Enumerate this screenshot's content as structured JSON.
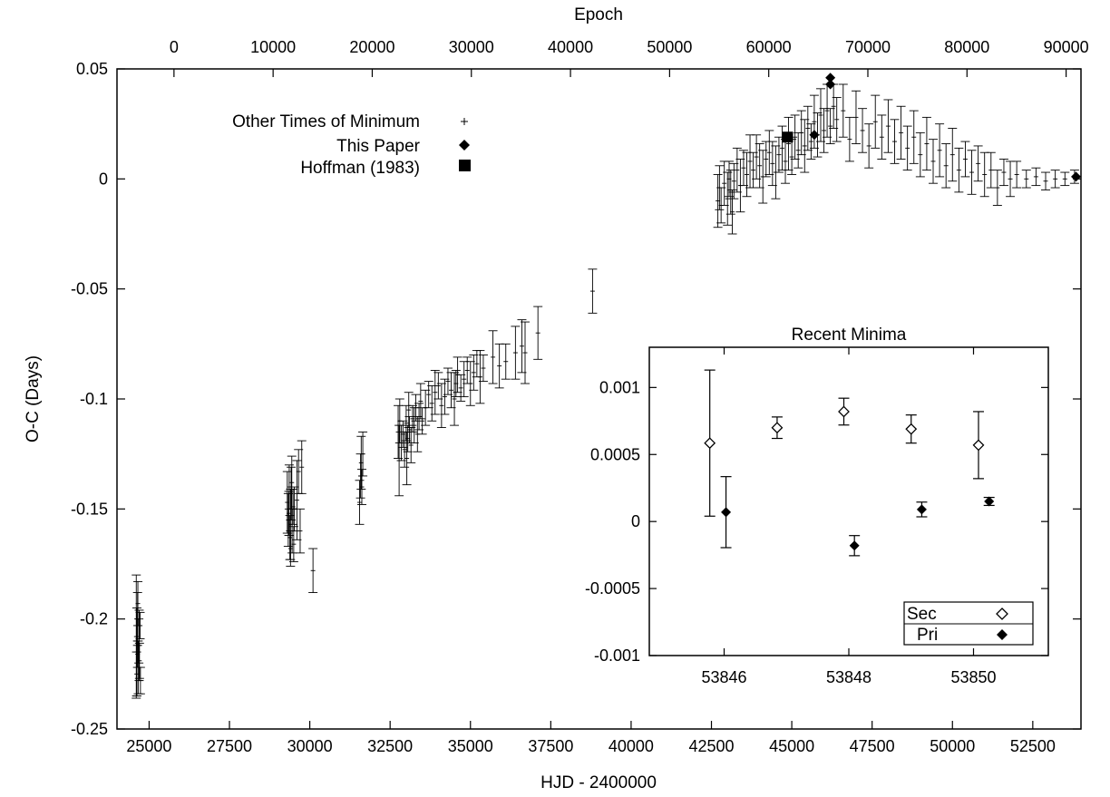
{
  "chart_data": [
    {
      "type": "scatter",
      "title": "",
      "xlabel": "HJD - 2400000",
      "ylabel": "O-C (Days)",
      "x2label": "Epoch",
      "xlim": [
        24000,
        54000
      ],
      "ylim": [
        -0.25,
        0.05
      ],
      "x2lim": [
        -5750,
        91500
      ],
      "xticks": [
        25000,
        27500,
        30000,
        32500,
        35000,
        37500,
        40000,
        42500,
        45000,
        47500,
        50000,
        52500
      ],
      "x2ticks": [
        0,
        10000,
        20000,
        30000,
        40000,
        50000,
        60000,
        70000,
        80000,
        90000
      ],
      "yticks": [
        -0.25,
        -0.2,
        -0.15,
        -0.1,
        -0.05,
        0,
        0.05
      ],
      "grid": false,
      "legend": "top-left",
      "legend_entries": [
        "Other Times of Minimum",
        "This Paper",
        "Hoffman (1983)"
      ],
      "series": [
        {
          "name": "Other Times of Minimum",
          "marker": "plus",
          "points": [
            [
              24600,
              -0.208,
              0.028
            ],
            [
              24620,
              -0.215,
              0.02
            ],
            [
              24640,
              -0.2,
              0.012
            ],
            [
              24660,
              -0.222,
              0.012
            ],
            [
              24680,
              -0.21,
              0.01
            ],
            [
              24700,
              -0.219,
              0.008
            ],
            [
              24610,
              -0.225,
              0.01
            ],
            [
              24650,
              -0.193,
              0.01
            ],
            [
              24690,
              -0.212,
              0.016
            ],
            [
              24720,
              -0.203,
              0.006
            ],
            [
              24730,
              -0.228,
              0.006
            ],
            [
              24640,
              -0.216,
              0.006
            ],
            [
              29300,
              -0.147,
              0.014
            ],
            [
              29350,
              -0.152,
              0.01
            ],
            [
              29380,
              -0.163,
              0.01
            ],
            [
              29400,
              -0.157,
              0.016
            ],
            [
              29420,
              -0.143,
              0.012
            ],
            [
              29450,
              -0.16,
              0.01
            ],
            [
              29480,
              -0.149,
              0.008
            ],
            [
              29500,
              -0.166,
              0.008
            ],
            [
              29520,
              -0.15,
              0.01
            ],
            [
              29330,
              -0.155,
              0.012
            ],
            [
              29360,
              -0.14,
              0.01
            ],
            [
              29400,
              -0.168,
              0.008
            ],
            [
              29440,
              -0.138,
              0.012
            ],
            [
              29600,
              -0.146,
              0.018
            ],
            [
              29650,
              -0.133,
              0.01
            ],
            [
              29700,
              -0.16,
              0.01
            ],
            [
              29750,
              -0.131,
              0.012
            ],
            [
              30100,
              -0.178,
              0.01
            ],
            [
              31550,
              -0.147,
              0.01
            ],
            [
              31580,
              -0.135,
              0.01
            ],
            [
              31600,
              -0.129,
              0.012
            ],
            [
              31620,
              -0.14,
              0.008
            ],
            [
              31650,
              -0.125,
              0.01
            ],
            [
              32750,
              -0.115,
              0.012
            ],
            [
              32780,
              -0.128,
              0.016
            ],
            [
              32800,
              -0.11,
              0.01
            ],
            [
              32850,
              -0.12,
              0.008
            ],
            [
              32900,
              -0.116,
              0.006
            ],
            [
              32950,
              -0.123,
              0.008
            ],
            [
              33000,
              -0.111,
              0.008
            ],
            [
              33020,
              -0.127,
              0.012
            ],
            [
              33050,
              -0.118,
              0.006
            ],
            [
              33080,
              -0.105,
              0.008
            ],
            [
              33100,
              -0.114,
              0.006
            ],
            [
              33150,
              -0.121,
              0.008
            ],
            [
              33200,
              -0.109,
              0.006
            ],
            [
              33250,
              -0.112,
              0.008
            ],
            [
              33300,
              -0.104,
              0.006
            ],
            [
              33350,
              -0.116,
              0.008
            ],
            [
              33400,
              -0.108,
              0.006
            ],
            [
              33450,
              -0.101,
              0.008
            ],
            [
              33500,
              -0.11,
              0.006
            ],
            [
              33600,
              -0.104,
              0.008
            ],
            [
              33700,
              -0.098,
              0.006
            ],
            [
              33800,
              -0.102,
              0.008
            ],
            [
              33900,
              -0.097,
              0.01
            ],
            [
              34000,
              -0.094,
              0.006
            ],
            [
              34100,
              -0.103,
              0.01
            ],
            [
              34200,
              -0.099,
              0.008
            ],
            [
              34300,
              -0.092,
              0.006
            ],
            [
              34400,
              -0.096,
              0.008
            ],
            [
              34500,
              -0.1,
              0.012
            ],
            [
              34550,
              -0.093,
              0.006
            ],
            [
              34600,
              -0.089,
              0.008
            ],
            [
              34700,
              -0.095,
              0.006
            ],
            [
              34800,
              -0.091,
              0.008
            ],
            [
              34900,
              -0.087,
              0.006
            ],
            [
              35000,
              -0.093,
              0.01
            ],
            [
              35100,
              -0.088,
              0.008
            ],
            [
              35200,
              -0.084,
              0.006
            ],
            [
              35300,
              -0.09,
              0.012
            ],
            [
              35400,
              -0.086,
              0.006
            ],
            [
              35700,
              -0.081,
              0.012
            ],
            [
              35900,
              -0.085,
              0.01
            ],
            [
              36100,
              -0.083,
              0.008
            ],
            [
              36400,
              -0.079,
              0.012
            ],
            [
              36600,
              -0.076,
              0.012
            ],
            [
              36700,
              -0.079,
              0.014
            ],
            [
              37100,
              -0.07,
              0.012
            ],
            [
              38800,
              -0.051,
              0.01
            ],
            [
              42700,
              -0.01,
              0.012
            ],
            [
              42750,
              -0.004,
              0.01
            ],
            [
              42800,
              -0.012,
              0.008
            ],
            [
              42900,
              -0.002,
              0.01
            ],
            [
              43000,
              -0.009,
              0.012
            ],
            [
              43050,
              0.0,
              0.008
            ],
            [
              43100,
              -0.006,
              0.01
            ],
            [
              43150,
              -0.015,
              0.01
            ],
            [
              43200,
              -0.001,
              0.008
            ],
            [
              43300,
              0.004,
              0.01
            ],
            [
              43400,
              -0.003,
              0.012
            ],
            [
              43500,
              0.005,
              0.008
            ],
            [
              43600,
              0.002,
              0.01
            ],
            [
              43700,
              0.008,
              0.012
            ],
            [
              43800,
              0.004,
              0.008
            ],
            [
              43900,
              0.01,
              0.01
            ],
            [
              44000,
              0.006,
              0.01
            ],
            [
              44100,
              0.001,
              0.012
            ],
            [
              44200,
              0.009,
              0.008
            ],
            [
              44300,
              0.012,
              0.01
            ],
            [
              44400,
              0.007,
              0.01
            ],
            [
              44500,
              0.003,
              0.012
            ],
            [
              44600,
              0.011,
              0.008
            ],
            [
              44700,
              0.014,
              0.01
            ],
            [
              44800,
              0.008,
              0.01
            ],
            [
              44900,
              0.016,
              0.012
            ],
            [
              45000,
              0.01,
              0.008
            ],
            [
              45100,
              0.019,
              0.01
            ],
            [
              45200,
              0.013,
              0.008
            ],
            [
              45300,
              0.021,
              0.01
            ],
            [
              45400,
              0.015,
              0.012
            ],
            [
              45500,
              0.023,
              0.01
            ],
            [
              45600,
              0.017,
              0.008
            ],
            [
              45700,
              0.026,
              0.012
            ],
            [
              45800,
              0.02,
              0.01
            ],
            [
              45900,
              0.029,
              0.012
            ],
            [
              46000,
              0.022,
              0.01
            ],
            [
              46100,
              0.031,
              0.012
            ],
            [
              46200,
              0.024,
              0.008
            ],
            [
              46300,
              0.033,
              0.01
            ],
            [
              46400,
              0.027,
              0.01
            ],
            [
              46600,
              0.031,
              0.012
            ],
            [
              46800,
              0.018,
              0.01
            ],
            [
              47000,
              0.028,
              0.012
            ],
            [
              47200,
              0.022,
              0.01
            ],
            [
              47400,
              0.015,
              0.01
            ],
            [
              47600,
              0.026,
              0.012
            ],
            [
              47800,
              0.019,
              0.01
            ],
            [
              48000,
              0.024,
              0.012
            ],
            [
              48200,
              0.017,
              0.01
            ],
            [
              48400,
              0.021,
              0.012
            ],
            [
              48600,
              0.014,
              0.01
            ],
            [
              48800,
              0.019,
              0.012
            ],
            [
              49000,
              0.011,
              0.01
            ],
            [
              49200,
              0.016,
              0.012
            ],
            [
              49400,
              0.008,
              0.01
            ],
            [
              49600,
              0.013,
              0.012
            ],
            [
              49800,
              0.006,
              0.01
            ],
            [
              50000,
              0.011,
              0.012
            ],
            [
              50200,
              0.004,
              0.01
            ],
            [
              50400,
              0.009,
              0.008
            ],
            [
              50600,
              0.003,
              0.01
            ],
            [
              50800,
              0.007,
              0.008
            ],
            [
              51000,
              0.002,
              0.01
            ],
            [
              51200,
              0.004,
              0.008
            ],
            [
              51400,
              -0.004,
              0.008
            ],
            [
              51600,
              0.003,
              0.006
            ],
            [
              51800,
              0.0,
              0.008
            ],
            [
              52000,
              0.002,
              0.006
            ],
            [
              52300,
              0.0,
              0.004
            ],
            [
              52600,
              0.001,
              0.004
            ],
            [
              52900,
              -0.001,
              0.004
            ],
            [
              53200,
              0.0,
              0.004
            ],
            [
              53500,
              0.0,
              0.003
            ],
            [
              53800,
              0.001,
              0.003
            ]
          ]
        },
        {
          "name": "This Paper",
          "marker": "filled-diamond",
          "points": [
            [
              45700,
              0.02
            ],
            [
              46200,
              0.043
            ],
            [
              46200,
              0.046
            ],
            [
              53846,
              0.001
            ]
          ]
        },
        {
          "name": "Hoffman (1983)",
          "marker": "filled-square",
          "points": [
            [
              44870,
              0.019
            ]
          ]
        }
      ]
    },
    {
      "type": "scatter",
      "title": "Recent Minima",
      "xlabel": "",
      "ylabel": "",
      "xlim": [
        53844.8,
        53851.2
      ],
      "ylim": [
        -0.001,
        0.0013
      ],
      "xticks": [
        53846,
        53848,
        53850
      ],
      "yticks": [
        -0.001,
        -0.0005,
        0,
        0.0005,
        0.001
      ],
      "legend": "bottom-right",
      "legend_entries": [
        "Sec",
        "Pri"
      ],
      "series": [
        {
          "name": "Sec",
          "marker": "open-diamond",
          "points": [
            [
              53845.77,
              0.000585,
              0.000545
            ],
            [
              53846.85,
              0.0007,
              8e-05
            ],
            [
              53847.92,
              0.00082,
              0.0001
            ],
            [
              53849.0,
              0.00069,
              0.000105
            ],
            [
              53850.08,
              0.00057,
              0.00025
            ]
          ]
        },
        {
          "name": "Pri",
          "marker": "filled-diamond",
          "points": [
            [
              53846.03,
              7e-05,
              0.000265
            ],
            [
              53848.09,
              -0.00018,
              7.5e-05
            ],
            [
              53849.17,
              9e-05,
              5.5e-05
            ],
            [
              53850.25,
              0.00015,
              3e-05
            ]
          ]
        }
      ]
    }
  ]
}
